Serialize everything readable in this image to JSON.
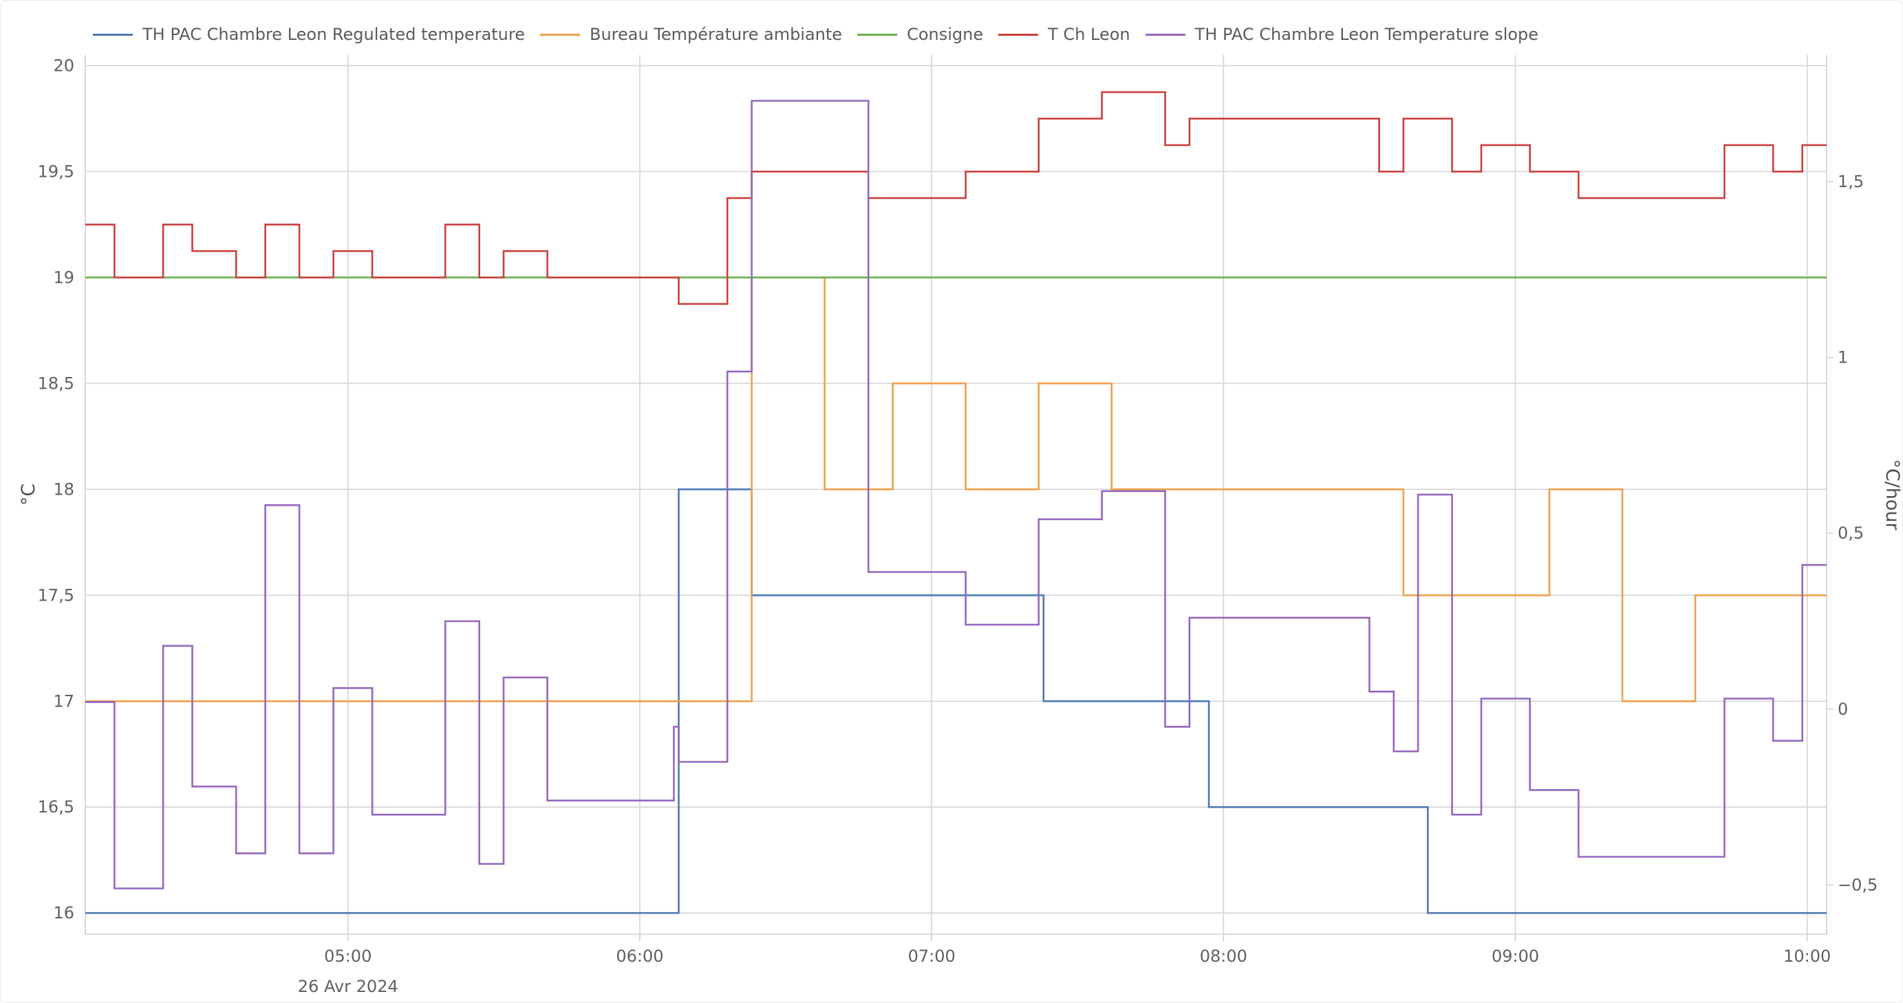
{
  "chart_data": {
    "type": "line",
    "interpolation": "step-after",
    "date_label": "26 Avr 2024",
    "x_range": [
      "04:06",
      "10:04"
    ],
    "x_ticks": [
      "05:00",
      "06:00",
      "07:00",
      "08:00",
      "09:00",
      "10:00"
    ],
    "y_left": {
      "title": "°C",
      "range": [
        15.9,
        20.05
      ],
      "ticks": [
        "16",
        "16,5",
        "17",
        "17,5",
        "18",
        "18,5",
        "19",
        "19,5",
        "20"
      ]
    },
    "y_right": {
      "title": "°C/hour",
      "range": [
        -0.64,
        1.86
      ],
      "ticks": [
        "−0,5",
        "0",
        "0,5",
        "1",
        "1,5"
      ]
    },
    "grid": true,
    "legend_position": "top-left",
    "series": [
      {
        "name": "TH PAC Chambre Leon Regulated temperature",
        "color": "#4e79b3",
        "axis": "left",
        "points": [
          [
            "04:06",
            16
          ],
          [
            "06:08",
            18
          ],
          [
            "06:23",
            17.5
          ],
          [
            "07:23",
            17
          ],
          [
            "07:57",
            16.5
          ],
          [
            "08:42",
            16
          ],
          [
            "10:04",
            16
          ]
        ]
      },
      {
        "name": "Bureau Température ambiante",
        "color": "#f0a04b",
        "axis": "left",
        "points": [
          [
            "04:06",
            17
          ],
          [
            "06:23",
            19
          ],
          [
            "06:38",
            18
          ],
          [
            "06:52",
            18.5
          ],
          [
            "07:07",
            18
          ],
          [
            "07:22",
            18.5
          ],
          [
            "07:37",
            18
          ],
          [
            "08:37",
            17.5
          ],
          [
            "09:07",
            18
          ],
          [
            "09:22",
            17
          ],
          [
            "09:37",
            17.5
          ],
          [
            "10:04",
            17.5
          ]
        ]
      },
      {
        "name": "Consigne",
        "color": "#6ab04c",
        "axis": "left",
        "points": [
          [
            "04:06",
            19
          ],
          [
            "10:04",
            19
          ]
        ]
      },
      {
        "name": "T Ch Leon",
        "color": "#c9403d",
        "axis": "left",
        "points": [
          [
            "04:06",
            19.25
          ],
          [
            "04:12",
            19
          ],
          [
            "04:22",
            19.25
          ],
          [
            "04:28",
            19.125
          ],
          [
            "04:37",
            19
          ],
          [
            "04:43",
            19.25
          ],
          [
            "04:50",
            19
          ],
          [
            "04:57",
            19.125
          ],
          [
            "05:05",
            19
          ],
          [
            "05:20",
            19.25
          ],
          [
            "05:27",
            19
          ],
          [
            "05:32",
            19.125
          ],
          [
            "05:41",
            19
          ],
          [
            "06:08",
            18.875
          ],
          [
            "06:18",
            19.375
          ],
          [
            "06:23",
            19.5
          ],
          [
            "06:47",
            19.375
          ],
          [
            "07:07",
            19.5
          ],
          [
            "07:22",
            19.75
          ],
          [
            "07:35",
            19.875
          ],
          [
            "07:48",
            19.625
          ],
          [
            "07:53",
            19.75
          ],
          [
            "08:32",
            19.5
          ],
          [
            "08:37",
            19.75
          ],
          [
            "08:47",
            19.5
          ],
          [
            "08:53",
            19.625
          ],
          [
            "09:03",
            19.5
          ],
          [
            "09:13",
            19.375
          ],
          [
            "09:43",
            19.625
          ],
          [
            "09:53",
            19.5
          ],
          [
            "09:59",
            19.625
          ],
          [
            "10:04",
            19.625
          ]
        ]
      },
      {
        "name": "TH PAC Chambre Leon Temperature slope",
        "color": "#9467bd",
        "axis": "right",
        "points": [
          [
            "04:06",
            0.02
          ],
          [
            "04:12",
            -0.51
          ],
          [
            "04:22",
            0.18
          ],
          [
            "04:28",
            -0.22
          ],
          [
            "04:37",
            -0.41
          ],
          [
            "04:43",
            0.58
          ],
          [
            "04:50",
            -0.41
          ],
          [
            "04:57",
            0.06
          ],
          [
            "05:05",
            -0.3
          ],
          [
            "05:20",
            0.25
          ],
          [
            "05:27",
            -0.44
          ],
          [
            "05:32",
            0.09
          ],
          [
            "05:41",
            -0.26
          ],
          [
            "06:07",
            -0.05
          ],
          [
            "06:08",
            -0.15
          ],
          [
            "06:18",
            0.96
          ],
          [
            "06:23",
            1.73
          ],
          [
            "06:47",
            0.39
          ],
          [
            "07:07",
            0.24
          ],
          [
            "07:22",
            0.54
          ],
          [
            "07:35",
            0.62
          ],
          [
            "07:48",
            -0.05
          ],
          [
            "07:53",
            0.26
          ],
          [
            "08:30",
            0.05
          ],
          [
            "08:35",
            -0.12
          ],
          [
            "08:40",
            0.61
          ],
          [
            "08:47",
            -0.3
          ],
          [
            "08:53",
            0.03
          ],
          [
            "09:03",
            -0.23
          ],
          [
            "09:13",
            -0.42
          ],
          [
            "09:43",
            0.03
          ],
          [
            "09:53",
            -0.09
          ],
          [
            "09:59",
            0.41
          ],
          [
            "10:04",
            0.41
          ]
        ]
      }
    ]
  }
}
